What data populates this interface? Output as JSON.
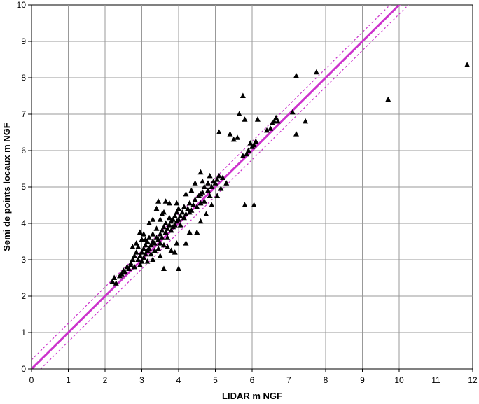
{
  "chart_data": {
    "type": "scatter",
    "title": "",
    "xlabel": "LIDAR m NGF",
    "ylabel": "Semi de points locaux m NGF",
    "xlim": [
      0,
      12
    ],
    "ylim": [
      0,
      10
    ],
    "x_ticks": [
      "0",
      "1",
      "2",
      "3",
      "4",
      "5",
      "6",
      "7",
      "8",
      "9",
      "10",
      "11",
      "12"
    ],
    "y_ticks": [
      "0",
      "1",
      "2",
      "3",
      "4",
      "5",
      "6",
      "7",
      "8",
      "9",
      "10"
    ],
    "grid": true,
    "legend": "none",
    "colors": {
      "points": "#000000",
      "line": "#cc33cc",
      "grid": "#999999"
    },
    "reference_lines": [
      {
        "kind": "y = x",
        "style": "solid"
      },
      {
        "kind": "y = x + 0.25",
        "style": "dotted"
      },
      {
        "kind": "y = x - 0.25",
        "style": "dotted"
      }
    ],
    "series": [
      {
        "marker": "triangle",
        "points": [
          [
            2.2,
            2.4
          ],
          [
            2.25,
            2.5
          ],
          [
            2.3,
            2.35
          ],
          [
            2.4,
            2.55
          ],
          [
            2.45,
            2.6
          ],
          [
            2.5,
            2.7
          ],
          [
            2.55,
            2.65
          ],
          [
            2.6,
            2.8
          ],
          [
            2.65,
            2.75
          ],
          [
            2.7,
            2.9
          ],
          [
            2.7,
            2.85
          ],
          [
            2.75,
            3.0
          ],
          [
            2.8,
            2.8
          ],
          [
            2.8,
            3.1
          ],
          [
            2.85,
            3.2
          ],
          [
            2.9,
            3.0
          ],
          [
            2.9,
            3.35
          ],
          [
            2.95,
            3.1
          ],
          [
            2.95,
            3.75
          ],
          [
            3.0,
            3.2
          ],
          [
            3.0,
            2.95
          ],
          [
            3.05,
            3.3
          ],
          [
            3.05,
            3.05
          ],
          [
            3.1,
            3.4
          ],
          [
            3.1,
            3.15
          ],
          [
            3.15,
            3.5
          ],
          [
            3.15,
            3.25
          ],
          [
            3.2,
            3.3
          ],
          [
            3.2,
            3.6
          ],
          [
            3.25,
            3.4
          ],
          [
            3.25,
            3.15
          ],
          [
            3.3,
            3.5
          ],
          [
            3.3,
            3.7
          ],
          [
            3.35,
            3.45
          ],
          [
            3.35,
            3.25
          ],
          [
            3.4,
            3.6
          ],
          [
            3.4,
            3.85
          ],
          [
            3.45,
            3.55
          ],
          [
            3.45,
            3.3
          ],
          [
            3.5,
            3.7
          ],
          [
            3.5,
            3.45
          ],
          [
            3.55,
            3.8
          ],
          [
            3.55,
            3.6
          ],
          [
            3.6,
            3.9
          ],
          [
            3.6,
            3.4
          ],
          [
            3.65,
            3.75
          ],
          [
            3.65,
            4.0
          ],
          [
            3.7,
            3.85
          ],
          [
            3.7,
            3.6
          ],
          [
            3.75,
            3.95
          ],
          [
            3.75,
            4.15
          ],
          [
            3.8,
            3.8
          ],
          [
            3.8,
            4.05
          ],
          [
            3.85,
            4.1
          ],
          [
            3.85,
            3.9
          ],
          [
            3.9,
            4.2
          ],
          [
            3.9,
            3.95
          ],
          [
            3.95,
            4.3
          ],
          [
            3.95,
            4.05
          ],
          [
            4.0,
            4.1
          ],
          [
            4.0,
            4.4
          ],
          [
            4.05,
            4.2
          ],
          [
            4.05,
            3.95
          ],
          [
            4.1,
            4.3
          ],
          [
            4.15,
            4.15
          ],
          [
            4.15,
            4.45
          ],
          [
            4.2,
            4.25
          ],
          [
            4.25,
            4.4
          ],
          [
            4.3,
            4.3
          ],
          [
            4.3,
            4.55
          ],
          [
            4.35,
            4.35
          ],
          [
            4.4,
            4.5
          ],
          [
            4.45,
            4.65
          ],
          [
            4.5,
            4.45
          ],
          [
            4.55,
            4.75
          ],
          [
            4.6,
            4.8
          ],
          [
            4.65,
            4.85
          ],
          [
            4.7,
            4.6
          ],
          [
            4.8,
            4.9
          ],
          [
            4.85,
            4.75
          ],
          [
            4.9,
            5.0
          ],
          [
            4.95,
            5.15
          ],
          [
            5.0,
            5.1
          ],
          [
            5.05,
            5.2
          ],
          [
            5.1,
            5.3
          ],
          [
            5.2,
            5.25
          ],
          [
            4.7,
            5.0
          ],
          [
            4.8,
            5.1
          ],
          [
            4.85,
            5.3
          ],
          [
            4.6,
            5.4
          ],
          [
            4.45,
            5.1
          ],
          [
            4.6,
            4.55
          ],
          [
            4.65,
            5.15
          ],
          [
            4.35,
            4.9
          ],
          [
            4.2,
            4.8
          ],
          [
            3.95,
            4.55
          ],
          [
            3.75,
            4.55
          ],
          [
            3.65,
            4.6
          ],
          [
            3.4,
            4.4
          ],
          [
            3.45,
            4.6
          ],
          [
            3.55,
            4.25
          ],
          [
            3.2,
            4.0
          ],
          [
            3.05,
            3.7
          ],
          [
            3.6,
            4.3
          ],
          [
            3.3,
            4.1
          ],
          [
            3.1,
            3.55
          ],
          [
            2.85,
            3.45
          ],
          [
            2.75,
            3.35
          ],
          [
            3.0,
            3.55
          ],
          [
            3.5,
            4.1
          ],
          [
            3.6,
            2.75
          ],
          [
            4.0,
            2.75
          ],
          [
            3.7,
            3.35
          ],
          [
            3.9,
            3.2
          ],
          [
            4.2,
            3.45
          ],
          [
            4.5,
            3.75
          ],
          [
            4.3,
            3.75
          ],
          [
            3.95,
            3.45
          ],
          [
            3.8,
            3.25
          ],
          [
            3.5,
            3.1
          ],
          [
            3.3,
            3.0
          ],
          [
            3.15,
            2.95
          ],
          [
            2.95,
            2.85
          ],
          [
            4.6,
            4.05
          ],
          [
            4.75,
            4.25
          ],
          [
            4.9,
            4.5
          ],
          [
            5.05,
            4.75
          ],
          [
            5.15,
            4.95
          ],
          [
            5.3,
            5.1
          ],
          [
            5.1,
            6.5
          ],
          [
            5.4,
            6.45
          ],
          [
            5.5,
            6.3
          ],
          [
            5.6,
            6.35
          ],
          [
            5.65,
            7.0
          ],
          [
            5.75,
            7.5
          ],
          [
            5.8,
            6.85
          ],
          [
            5.75,
            5.85
          ],
          [
            5.85,
            5.9
          ],
          [
            5.9,
            6.0
          ],
          [
            5.95,
            6.2
          ],
          [
            6.0,
            6.1
          ],
          [
            6.05,
            6.15
          ],
          [
            6.1,
            6.25
          ],
          [
            6.15,
            6.85
          ],
          [
            5.8,
            4.5
          ],
          [
            6.05,
            4.5
          ],
          [
            6.4,
            6.55
          ],
          [
            6.5,
            6.6
          ],
          [
            6.55,
            6.75
          ],
          [
            6.6,
            6.8
          ],
          [
            6.65,
            6.9
          ],
          [
            6.7,
            6.8
          ],
          [
            7.1,
            7.05
          ],
          [
            7.2,
            6.45
          ],
          [
            7.2,
            8.05
          ],
          [
            7.45,
            6.8
          ],
          [
            7.75,
            8.15
          ],
          [
            9.7,
            7.4
          ],
          [
            11.85,
            8.35
          ]
        ]
      }
    ]
  }
}
